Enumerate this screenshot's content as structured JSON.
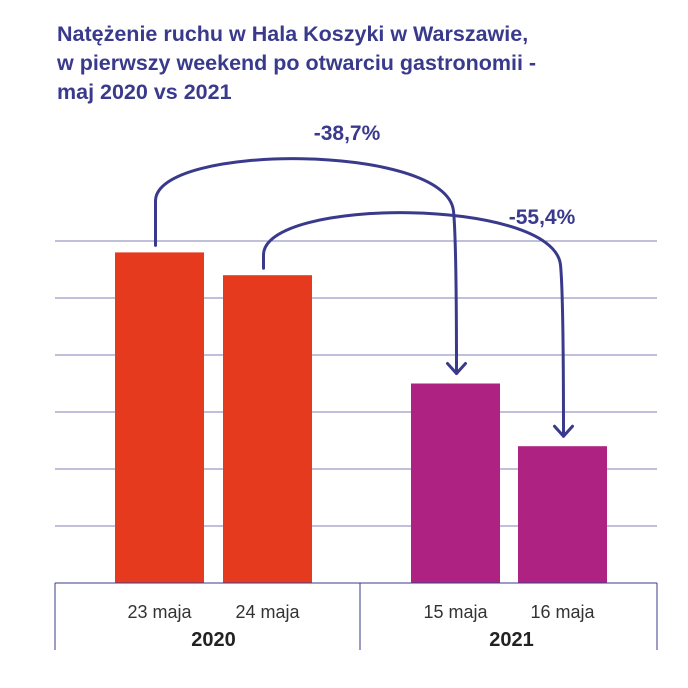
{
  "title_lines": [
    "Natężenie ruchu w Hala Koszyki w Warszawie,",
    "w pierwszy weekend po otwarciu gastronomii -",
    "maj 2020 vs 2021"
  ],
  "colors": {
    "title": "#3a3a8c",
    "bar_2020": "#e63a1e",
    "bar_2021": "#ae2282",
    "arrow": "#3a3a8c",
    "grid": "#3a3a8c",
    "axis_text": "#333333"
  },
  "chart_data": {
    "type": "bar",
    "ylim": [
      0,
      6
    ],
    "grid": true,
    "groups": [
      {
        "label": "2020",
        "bars": [
          {
            "label": "23 maja",
            "value": 5.8,
            "color": "#e63a1e"
          },
          {
            "label": "24 maja",
            "value": 5.4,
            "color": "#e63a1e"
          }
        ]
      },
      {
        "label": "2021",
        "bars": [
          {
            "label": "15 maja",
            "value": 3.5,
            "color": "#ae2282"
          },
          {
            "label": "16 maja",
            "value": 2.4,
            "color": "#ae2282"
          }
        ]
      }
    ],
    "annotations": [
      {
        "text": "-38,7%",
        "from_bar": 0,
        "to_bar": 2
      },
      {
        "text": "-55,4%",
        "from_bar": 1,
        "to_bar": 3
      }
    ]
  }
}
